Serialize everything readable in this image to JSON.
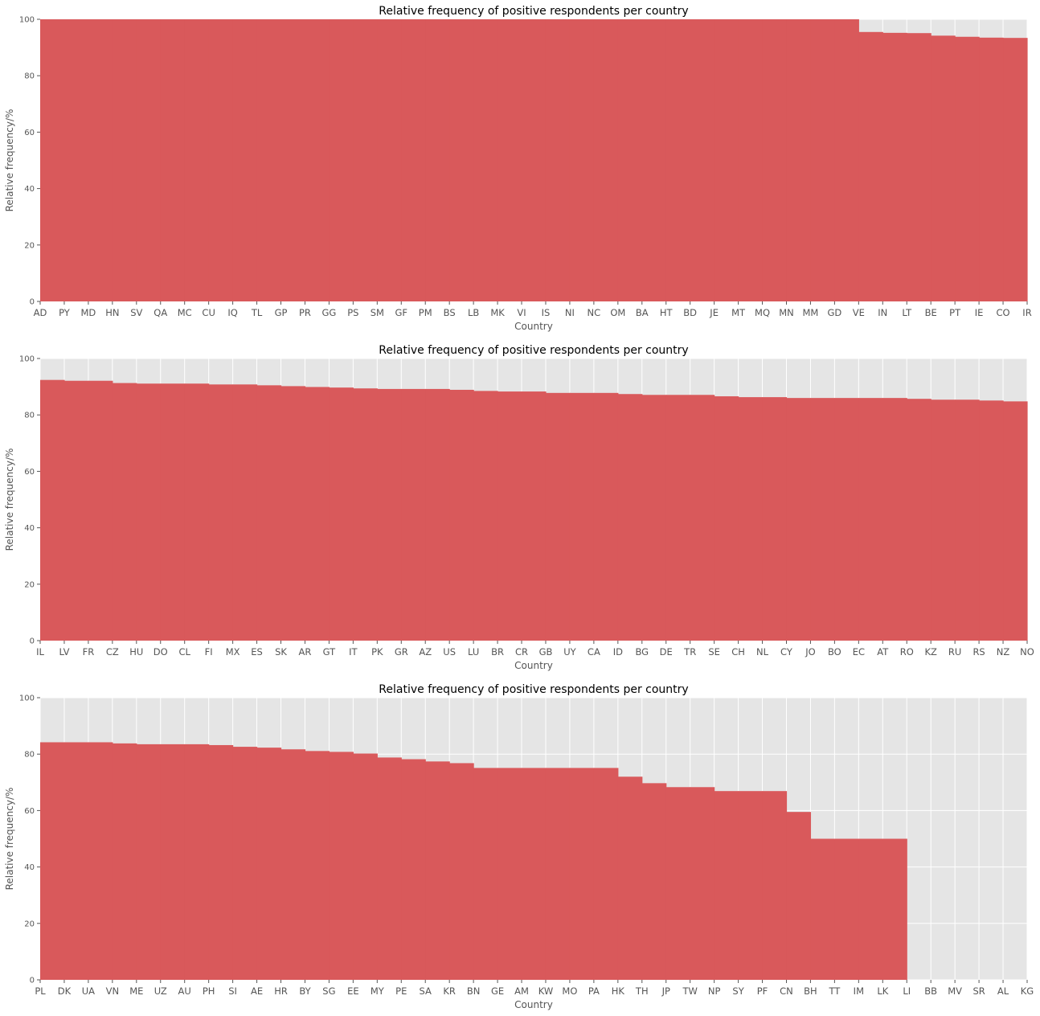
{
  "chart_data": [
    {
      "type": "bar",
      "title": "Relative frequency of positive respondents per country",
      "xlabel": "Country",
      "ylabel": "Relative frequency/%",
      "ylim": [
        0,
        100
      ],
      "yticks": [
        0,
        20,
        40,
        60,
        80,
        100
      ],
      "grid": true,
      "bar_color": "#d9595b",
      "categories": [
        "AD",
        "PY",
        "MD",
        "HN",
        "SV",
        "QA",
        "MC",
        "CU",
        "IQ",
        "TL",
        "GP",
        "PR",
        "GG",
        "PS",
        "SM",
        "GF",
        "PM",
        "BS",
        "LB",
        "MK",
        "VI",
        "IS",
        "NI",
        "NC",
        "OM",
        "BA",
        "HT",
        "BD",
        "JE",
        "MT",
        "MQ",
        "MN",
        "MM",
        "GD",
        "VE",
        "IN",
        "LT",
        "BE",
        "PT",
        "IE",
        "CO",
        "IR"
      ],
      "values": [
        100,
        100,
        100,
        100,
        100,
        100,
        100,
        100,
        100,
        100,
        100,
        100,
        100,
        100,
        100,
        100,
        100,
        100,
        100,
        100,
        100,
        100,
        100,
        100,
        100,
        100,
        100,
        100,
        100,
        100,
        100,
        100,
        100,
        100,
        95.5,
        95.2,
        95.1,
        94.2,
        93.8,
        93.5,
        93.4,
        92.4
      ]
    },
    {
      "type": "bar",
      "title": "Relative frequency of positive respondents per country",
      "xlabel": "Country",
      "ylabel": "Relative frequency/%",
      "ylim": [
        0,
        100
      ],
      "yticks": [
        0,
        20,
        40,
        60,
        80,
        100
      ],
      "grid": true,
      "bar_color": "#d9595b",
      "categories": [
        "IL",
        "LV",
        "FR",
        "CZ",
        "HU",
        "DO",
        "CL",
        "FI",
        "MX",
        "ES",
        "SK",
        "AR",
        "GT",
        "IT",
        "PK",
        "GR",
        "AZ",
        "US",
        "LU",
        "BR",
        "CR",
        "GB",
        "UY",
        "CA",
        "ID",
        "BG",
        "DE",
        "TR",
        "SE",
        "CH",
        "NL",
        "CY",
        "JO",
        "BO",
        "EC",
        "AT",
        "RO",
        "KZ",
        "RU",
        "RS",
        "NZ",
        "NO"
      ],
      "values": [
        92.4,
        92.1,
        92.1,
        91.3,
        91.1,
        91.1,
        91.1,
        90.8,
        90.8,
        90.5,
        90.2,
        89.9,
        89.7,
        89.4,
        89.2,
        89.2,
        89.2,
        88.9,
        88.5,
        88.3,
        88.3,
        87.8,
        87.8,
        87.8,
        87.4,
        87.1,
        87.1,
        87.1,
        86.6,
        86.3,
        86.3,
        86.0,
        86.0,
        86.0,
        86.0,
        86.0,
        85.7,
        85.4,
        85.4,
        85.1,
        84.8,
        84.4
      ]
    },
    {
      "type": "bar",
      "title": "Relative frequency of positive respondents per country",
      "xlabel": "Country",
      "ylabel": "Relative frequency/%",
      "ylim": [
        0,
        100
      ],
      "yticks": [
        0,
        20,
        40,
        60,
        80,
        100
      ],
      "grid": true,
      "bar_color": "#d9595b",
      "categories": [
        "PL",
        "DK",
        "UA",
        "VN",
        "ME",
        "UZ",
        "AU",
        "PH",
        "SI",
        "AE",
        "HR",
        "BY",
        "SG",
        "EE",
        "MY",
        "PE",
        "SA",
        "KR",
        "BN",
        "GE",
        "AM",
        "KW",
        "MO",
        "PA",
        "HK",
        "TH",
        "JP",
        "TW",
        "NP",
        "SY",
        "PF",
        "CN",
        "BH",
        "TT",
        "IM",
        "LK",
        "LI",
        "BB",
        "MV",
        "SR",
        "AL",
        "KG"
      ],
      "values": [
        84.2,
        84.2,
        84.2,
        83.8,
        83.5,
        83.5,
        83.5,
        83.2,
        82.6,
        82.3,
        81.7,
        81.1,
        80.8,
        80.2,
        78.8,
        78.2,
        77.4,
        76.8,
        75.1,
        75.1,
        75.1,
        75.1,
        75.1,
        75.1,
        72.0,
        69.7,
        68.3,
        68.3,
        66.9,
        66.9,
        66.9,
        59.5,
        50,
        50,
        50,
        50,
        0,
        0,
        0,
        0,
        0,
        0
      ]
    }
  ]
}
